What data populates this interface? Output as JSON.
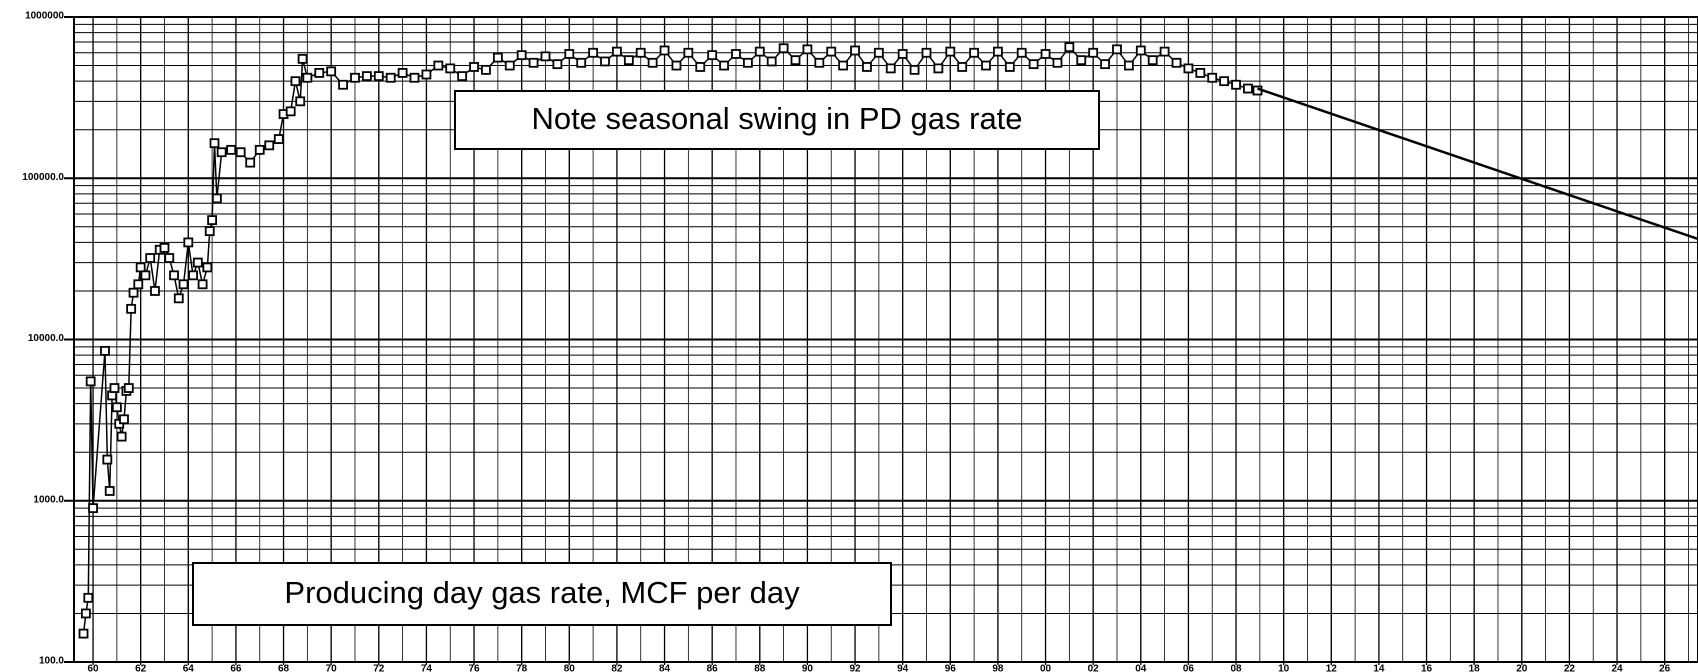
{
  "chart_data": {
    "type": "line",
    "log_y": true,
    "grid": true,
    "annotations": [
      "Note seasonal swing in PD gas rate",
      "Producing day gas rate, MCF per day"
    ],
    "xlim": [
      1959.2,
      2027.4
    ],
    "ylim": [
      100,
      1000000
    ],
    "yticks": [
      {
        "value": 100,
        "label": "100.0"
      },
      {
        "value": 1000,
        "label": "1000.0"
      },
      {
        "value": 10000,
        "label": "10000.0"
      },
      {
        "value": 100000,
        "label": "100000.0"
      },
      1000000
    ],
    "xticks": [
      {
        "value": 1960,
        "label": "60"
      },
      {
        "value": 1962,
        "label": "62"
      },
      {
        "value": 1964,
        "label": "64"
      },
      {
        "value": 1966,
        "label": "66"
      },
      {
        "value": 1968,
        "label": "68"
      },
      {
        "value": 1970,
        "label": "70"
      },
      {
        "value": 1972,
        "label": "72"
      },
      {
        "value": 1974,
        "label": "74"
      },
      {
        "value": 1976,
        "label": "76"
      },
      {
        "value": 1978,
        "label": "78"
      },
      {
        "value": 1980,
        "label": "80"
      },
      {
        "value": 1982,
        "label": "82"
      },
      {
        "value": 1984,
        "label": "84"
      },
      {
        "value": 1986,
        "label": "86"
      },
      {
        "value": 1988,
        "label": "88"
      },
      {
        "value": 1990,
        "label": "90"
      },
      {
        "value": 1992,
        "label": "92"
      },
      {
        "value": 1994,
        "label": "94"
      },
      {
        "value": 1996,
        "label": "96"
      },
      {
        "value": 1998,
        "label": "98"
      },
      {
        "value": 2000,
        "label": "00"
      },
      {
        "value": 2002,
        "label": "02"
      },
      {
        "value": 2004,
        "label": "04"
      },
      {
        "value": 2006,
        "label": "06"
      },
      {
        "value": 2008,
        "label": "08"
      },
      {
        "value": 2010,
        "label": "10"
      },
      {
        "value": 2012,
        "label": "12"
      },
      {
        "value": 2014,
        "label": "14"
      },
      {
        "value": 2016,
        "label": "16"
      },
      {
        "value": 2018,
        "label": "18"
      },
      {
        "value": 2020,
        "label": "20"
      },
      {
        "value": 2022,
        "label": "22"
      },
      {
        "value": 2024,
        "label": "24"
      },
      {
        "value": 2026,
        "label": "26"
      }
    ],
    "series": [
      {
        "color": "#000000",
        "markers": true,
        "x": [
          1959.6,
          1959.7,
          1959.8,
          1959.9,
          1960.0,
          1960.5,
          1960.6,
          1960.7,
          1960.8,
          1960.9,
          1961.0,
          1961.1,
          1961.2,
          1961.3,
          1961.4,
          1961.5,
          1961.6,
          1961.7,
          1961.9,
          1962.0,
          1962.2,
          1962.4,
          1962.6,
          1962.8,
          1963.0,
          1963.2,
          1963.4,
          1963.6,
          1963.8,
          1964.0,
          1964.2,
          1964.4,
          1964.6,
          1964.8,
          1964.9,
          1965.0,
          1965.1,
          1965.2,
          1965.4,
          1965.8,
          1966.2,
          1966.6,
          1967.0,
          1967.4,
          1967.8,
          1968.0,
          1968.3,
          1968.5,
          1968.7,
          1968.8,
          1969.0,
          1969.5,
          1970.0,
          1970.5,
          1971.0,
          1971.5,
          1972.0,
          1972.5,
          1973.0,
          1973.5,
          1974.0,
          1974.5,
          1975.0,
          1975.5,
          1976.0,
          1976.5,
          1977.0,
          1977.5,
          1978.0,
          1978.5,
          1979.0,
          1979.5,
          1980.0,
          1980.5,
          1981.0,
          1981.5,
          1982.0,
          1982.5,
          1983.0,
          1983.5,
          1984.0,
          1984.5,
          1985.0,
          1985.5,
          1986.0,
          1986.5,
          1987.0,
          1987.5,
          1988.0,
          1988.5,
          1989.0,
          1989.5,
          1990.0,
          1990.5,
          1991.0,
          1991.5,
          1992.0,
          1992.5,
          1993.0,
          1993.5,
          1994.0,
          1994.5,
          1995.0,
          1995.5,
          1996.0,
          1996.5,
          1997.0,
          1997.5,
          1998.0,
          1998.5,
          1999.0,
          1999.5,
          2000.0,
          2000.5,
          2001.0,
          2001.5,
          2002.0,
          2002.5,
          2003.0,
          2003.5,
          2004.0,
          2004.5,
          2005.0,
          2005.5,
          2006.0,
          2006.5,
          2007.0,
          2007.5,
          2008.0,
          2008.5,
          2008.9
        ],
        "values": [
          150,
          200,
          250,
          5500,
          900,
          8500,
          1800,
          1150,
          4500,
          5000,
          3800,
          3000,
          2500,
          3200,
          4800,
          5000,
          15500,
          19500,
          22000,
          28000,
          25000,
          32000,
          20000,
          36000,
          37000,
          32000,
          25000,
          18000,
          22000,
          40000,
          25000,
          30000,
          22000,
          28000,
          47000,
          55000,
          165000,
          75000,
          145000,
          150000,
          145000,
          125000,
          150000,
          160000,
          175000,
          250000,
          260000,
          400000,
          300000,
          550000,
          420000,
          450000,
          460000,
          380000,
          420000,
          430000,
          430000,
          420000,
          450000,
          420000,
          440000,
          500000,
          480000,
          430000,
          490000,
          470000,
          560000,
          500000,
          580000,
          520000,
          570000,
          510000,
          590000,
          520000,
          600000,
          530000,
          610000,
          540000,
          600000,
          520000,
          620000,
          500000,
          600000,
          490000,
          580000,
          500000,
          590000,
          520000,
          610000,
          530000,
          640000,
          540000,
          630000,
          520000,
          610000,
          500000,
          620000,
          490000,
          600000,
          480000,
          590000,
          470000,
          600000,
          480000,
          610000,
          490000,
          600000,
          500000,
          610000,
          490000,
          600000,
          510000,
          590000,
          520000,
          650000,
          540000,
          600000,
          510000,
          630000,
          500000,
          620000,
          540000,
          610000,
          520000,
          480000,
          450000,
          420000,
          400000,
          380000,
          360000,
          350000
        ]
      },
      {
        "color": "#000000",
        "markers": false,
        "x": [
          2008.9,
          2027.4
        ],
        "values": [
          360000,
          42000
        ]
      }
    ]
  }
}
